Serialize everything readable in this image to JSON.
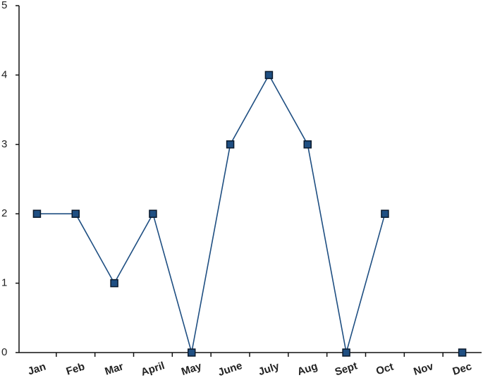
{
  "chart_data": {
    "type": "line",
    "categories": [
      "Jan",
      "Feb",
      "Mar",
      "April",
      "May",
      "June",
      "July",
      "Aug",
      "Sept",
      "Oct",
      "Nov",
      "Dec"
    ],
    "values": [
      2,
      2,
      1,
      2,
      0,
      3,
      4,
      3,
      0,
      2,
      null,
      0
    ],
    "color": "#1f4f82",
    "ylim": [
      0,
      5
    ],
    "yticks": [
      0,
      1,
      2,
      3,
      4,
      5
    ],
    "grid": false
  }
}
